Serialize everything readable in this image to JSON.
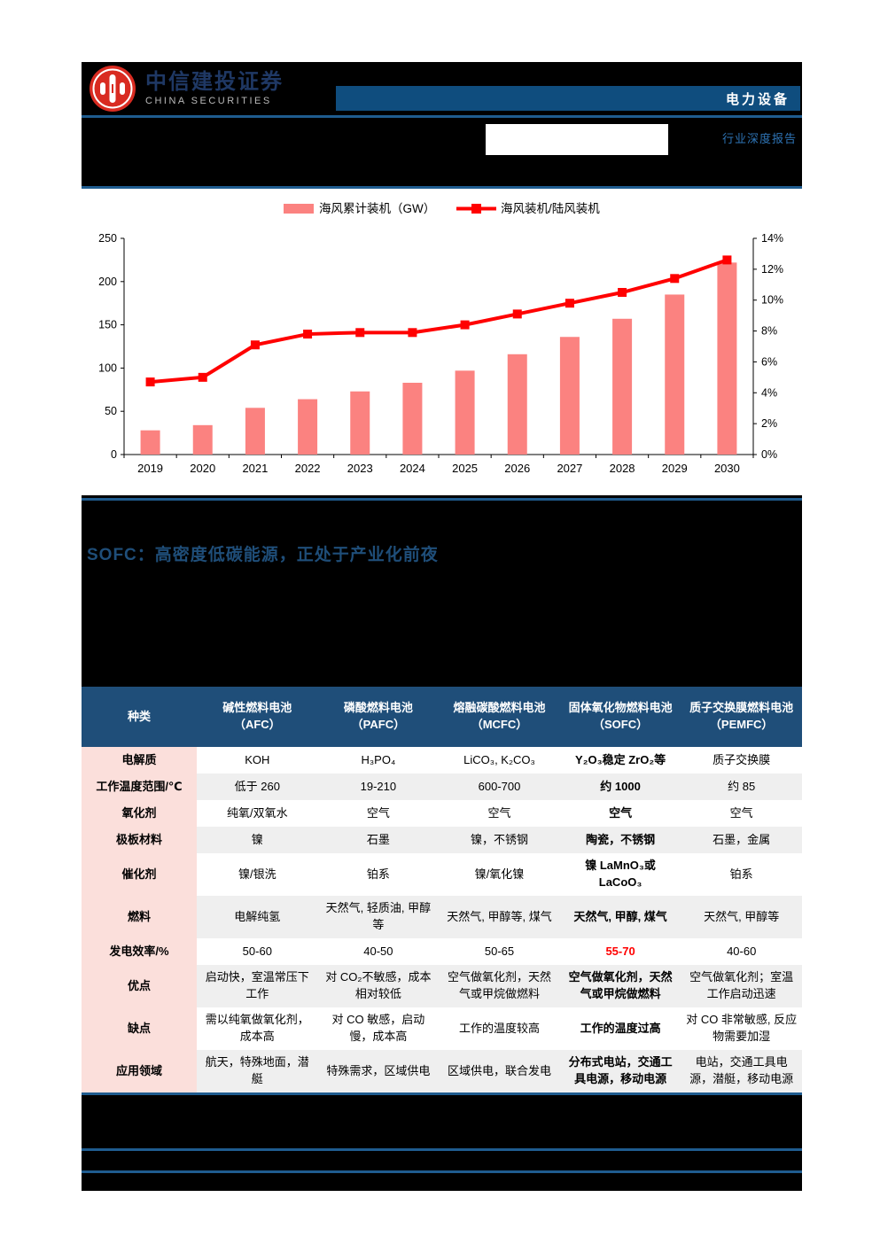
{
  "header": {
    "brand_cn": "中信建投证券",
    "brand_en": "CHINA SECURITIES",
    "sector_label": "电力设备",
    "report_type": "行业深度报告"
  },
  "section": {
    "title": "SOFC：高密度低碳能源，正处于产业化前夜"
  },
  "colors": {
    "navy_bar": "#0f4d7e",
    "table_header": "#1f4e79",
    "divider_blue": "#1f5c8f",
    "row_label_pink": "#fbdfdb",
    "row_alt_gray": "#efefef",
    "bar_pink": "#fb8280",
    "line_red": "#ff0000",
    "highlight_red": "#ff0000",
    "report_type_blue": "#2e74b5",
    "logo_red": "#d92b21"
  },
  "chart_data": {
    "type": "bar",
    "categories": [
      "2019",
      "2020",
      "2021",
      "2022",
      "2023",
      "2024",
      "2025",
      "2026",
      "2027",
      "2028",
      "2029",
      "2030"
    ],
    "series": [
      {
        "name": "海风累计装机（GW）",
        "type": "bar",
        "axis": "left",
        "color": "#fb8280",
        "values": [
          28,
          34,
          54,
          64,
          73,
          83,
          97,
          116,
          136,
          157,
          185,
          222
        ]
      },
      {
        "name": "海风装机/陆风装机",
        "type": "line",
        "axis": "right",
        "color": "#ff0000",
        "values": [
          4.7,
          5.0,
          7.1,
          7.8,
          7.9,
          7.9,
          8.4,
          9.1,
          9.8,
          10.5,
          11.4,
          12.6
        ]
      }
    ],
    "title": "",
    "xlabel": "",
    "ylabel_left": "",
    "ylabel_right": "",
    "left_axis": {
      "min": 0,
      "max": 250,
      "step": 50
    },
    "right_axis": {
      "min": 0,
      "max": 14,
      "step": 2,
      "suffix": "%"
    },
    "legend_position": "top",
    "grid": false
  },
  "table": {
    "col_headers": [
      {
        "line1": "种类",
        "line2": ""
      },
      {
        "line1": "碱性燃料电池",
        "line2": "（AFC）"
      },
      {
        "line1": "磷酸燃料电池",
        "line2": "（PAFC）"
      },
      {
        "line1": "熔融碳酸燃料电池",
        "line2": "（MCFC）"
      },
      {
        "line1": "固体氧化物燃料电池",
        "line2": "（SOFC）"
      },
      {
        "line1": "质子交换膜燃料电池",
        "line2": "（PEMFC）"
      }
    ],
    "highlight_col": 3,
    "rows": [
      {
        "label": "电解质",
        "cells": [
          "KOH",
          "H₃PO₄",
          "LiCO₃, K₂CO₃",
          "Y₂O₃稳定 ZrO₂等",
          "质子交换膜"
        ]
      },
      {
        "label": "工作温度范围/℃",
        "cells": [
          "低于 260",
          "19-210",
          "600-700",
          "约 1000",
          "约 85"
        ]
      },
      {
        "label": "氧化剂",
        "cells": [
          "纯氧/双氧水",
          "空气",
          "空气",
          "空气",
          "空气"
        ]
      },
      {
        "label": "极板材料",
        "cells": [
          "镍",
          "石墨",
          "镍，不锈钢",
          "陶瓷，不锈钢",
          "石墨，金属"
        ]
      },
      {
        "label": "催化剂",
        "cells": [
          "镍/银洗",
          "铂系",
          "镍/氧化镍",
          "镍 LaMnO₃或 LaCoO₃",
          "铂系"
        ]
      },
      {
        "label": "燃料",
        "cells": [
          "电解纯氢",
          "天然气, 轻质油, 甲醇等",
          "天然气, 甲醇等, 煤气",
          "天然气, 甲醇, 煤气",
          "天然气, 甲醇等"
        ]
      },
      {
        "label": "发电效率/%",
        "cells": [
          "50-60",
          "40-50",
          "50-65",
          "55-70",
          "40-60"
        ],
        "red_cell": 3
      },
      {
        "label": "优点",
        "cells": [
          "启动快，室温常压下工作",
          "对 CO₂不敏感，成本相对较低",
          "空气做氧化剂，天然气或甲烷做燃料",
          "空气做氧化剂，天然气或甲烷做燃料",
          "空气做氧化剂；室温工作启动迅速"
        ]
      },
      {
        "label": "缺点",
        "cells": [
          "需以纯氧做氧化剂，成本高",
          "对 CO 敏感，启动慢，成本高",
          "工作的温度较高",
          "工作的温度过高",
          "对 CO 非常敏感, 反应物需要加湿"
        ]
      },
      {
        "label": "应用领域",
        "cells": [
          "航天，特殊地面，潜艇",
          "特殊需求，区域供电",
          "区域供电，联合发电",
          "分布式电站，交通工具电源，移动电源",
          "电站，交通工具电源，潜艇，移动电源"
        ]
      }
    ]
  }
}
